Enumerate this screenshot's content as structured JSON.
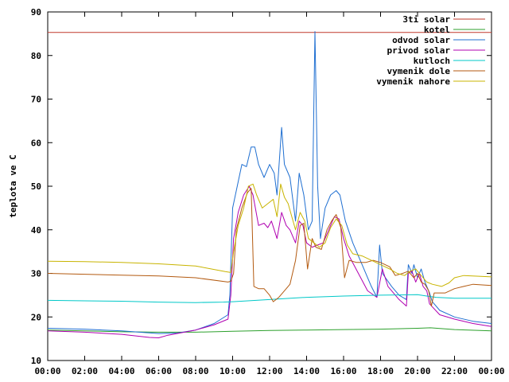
{
  "chart_data": {
    "type": "line",
    "title": "",
    "xlabel": "",
    "ylabel": "teplota ve C",
    "xlim": [
      0,
      24
    ],
    "ylim": [
      10,
      90
    ],
    "x_tick_labels": [
      "00:00",
      "02:00",
      "04:00",
      "06:00",
      "08:00",
      "10:00",
      "12:00",
      "14:00",
      "16:00",
      "18:00",
      "20:00",
      "22:00",
      "00:00"
    ],
    "y_tick_labels": [
      "10",
      "20",
      "30",
      "40",
      "50",
      "60",
      "70",
      "80",
      "90"
    ],
    "grid": false,
    "legend_position": "top-right",
    "series": [
      {
        "name": "3ti solar",
        "color": "#c0392b",
        "points": [
          [
            0,
            85.3
          ],
          [
            24,
            85.3
          ]
        ]
      },
      {
        "name": "kotel",
        "color": "#2ca02c",
        "points": [
          [
            0,
            17.0
          ],
          [
            2,
            16.8
          ],
          [
            4,
            16.6
          ],
          [
            6,
            16.5
          ],
          [
            8,
            16.5
          ],
          [
            10,
            16.7
          ],
          [
            12,
            16.9
          ],
          [
            14,
            17.0
          ],
          [
            16,
            17.1
          ],
          [
            18,
            17.2
          ],
          [
            20,
            17.4
          ],
          [
            20.7,
            17.5
          ],
          [
            22,
            17.1
          ],
          [
            24,
            16.8
          ]
        ]
      },
      {
        "name": "odvod solar",
        "color": "#1f6fd1",
        "points": [
          [
            0,
            17.4
          ],
          [
            2,
            17.2
          ],
          [
            4,
            16.8
          ],
          [
            6,
            16.2
          ],
          [
            7,
            16.3
          ],
          [
            8,
            17.0
          ],
          [
            9,
            18.5
          ],
          [
            9.75,
            20.5
          ],
          [
            9.85,
            25
          ],
          [
            10,
            45
          ],
          [
            10.25,
            50
          ],
          [
            10.5,
            55
          ],
          [
            10.75,
            54.5
          ],
          [
            11,
            59
          ],
          [
            11.2,
            59
          ],
          [
            11.4,
            55
          ],
          [
            11.7,
            52
          ],
          [
            12.0,
            55
          ],
          [
            12.25,
            53
          ],
          [
            12.4,
            48
          ],
          [
            12.65,
            63.5
          ],
          [
            12.8,
            55
          ],
          [
            13.1,
            52
          ],
          [
            13.4,
            42
          ],
          [
            13.6,
            53
          ],
          [
            13.85,
            48
          ],
          [
            14.1,
            40
          ],
          [
            14.3,
            42
          ],
          [
            14.45,
            85.5
          ],
          [
            14.6,
            50
          ],
          [
            14.75,
            38
          ],
          [
            15.0,
            45
          ],
          [
            15.3,
            48
          ],
          [
            15.6,
            49
          ],
          [
            15.8,
            48
          ],
          [
            16.1,
            42
          ],
          [
            16.5,
            37
          ],
          [
            17.0,
            32
          ],
          [
            17.5,
            27
          ],
          [
            17.8,
            24.5
          ],
          [
            17.95,
            36.5
          ],
          [
            18.1,
            30
          ],
          [
            18.6,
            27
          ],
          [
            19.0,
            25
          ],
          [
            19.4,
            24
          ],
          [
            19.5,
            32
          ],
          [
            19.7,
            30
          ],
          [
            19.8,
            32
          ],
          [
            20.0,
            29
          ],
          [
            20.2,
            31
          ],
          [
            20.4,
            28
          ],
          [
            20.65,
            25.5
          ],
          [
            20.8,
            23.5
          ],
          [
            21.2,
            21.5
          ],
          [
            22.0,
            20
          ],
          [
            23.0,
            19
          ],
          [
            24,
            18.5
          ]
        ]
      },
      {
        "name": "privod solar",
        "color": "#b000b0",
        "points": [
          [
            0,
            16.8
          ],
          [
            2,
            16.5
          ],
          [
            4,
            16.0
          ],
          [
            5.5,
            15.3
          ],
          [
            6,
            15.2
          ],
          [
            6.5,
            15.8
          ],
          [
            8,
            17.0
          ],
          [
            9,
            18.2
          ],
          [
            9.75,
            19.5
          ],
          [
            9.9,
            25
          ],
          [
            10.05,
            38
          ],
          [
            10.3,
            44
          ],
          [
            10.6,
            48
          ],
          [
            10.9,
            50
          ],
          [
            11.1,
            48
          ],
          [
            11.4,
            41
          ],
          [
            11.7,
            41.5
          ],
          [
            11.9,
            40.5
          ],
          [
            12.1,
            42
          ],
          [
            12.4,
            38
          ],
          [
            12.65,
            44
          ],
          [
            12.9,
            41
          ],
          [
            13.1,
            40
          ],
          [
            13.4,
            37
          ],
          [
            13.6,
            42
          ],
          [
            13.8,
            41
          ],
          [
            14.0,
            37
          ],
          [
            14.3,
            36
          ],
          [
            14.6,
            36.5
          ],
          [
            14.9,
            37
          ],
          [
            15.2,
            40
          ],
          [
            15.5,
            43
          ],
          [
            15.75,
            42.5
          ],
          [
            16.0,
            38
          ],
          [
            16.3,
            34
          ],
          [
            16.8,
            30
          ],
          [
            17.3,
            26
          ],
          [
            17.8,
            24.5
          ],
          [
            18.1,
            31
          ],
          [
            18.4,
            27
          ],
          [
            19.0,
            24
          ],
          [
            19.4,
            22.5
          ],
          [
            19.5,
            30
          ],
          [
            19.7,
            30.5
          ],
          [
            19.9,
            28
          ],
          [
            20.1,
            30
          ],
          [
            20.3,
            27
          ],
          [
            20.5,
            26
          ],
          [
            20.65,
            23
          ],
          [
            21.2,
            20.5
          ],
          [
            22.0,
            19.5
          ],
          [
            23.0,
            18.5
          ],
          [
            24,
            17.8
          ]
        ]
      },
      {
        "name": "kutloch",
        "color": "#00c8c8",
        "points": [
          [
            0,
            23.8
          ],
          [
            2,
            23.7
          ],
          [
            4,
            23.6
          ],
          [
            6,
            23.4
          ],
          [
            8,
            23.3
          ],
          [
            9.5,
            23.4
          ],
          [
            10,
            23.5
          ],
          [
            12,
            24.0
          ],
          [
            14,
            24.5
          ],
          [
            16,
            24.8
          ],
          [
            18,
            25.0
          ],
          [
            20,
            25.1
          ],
          [
            20.5,
            24.8
          ],
          [
            21,
            24.5
          ],
          [
            22,
            24.3
          ],
          [
            24,
            24.3
          ]
        ]
      },
      {
        "name": "vymenik dole",
        "color": "#b35a10",
        "points": [
          [
            0,
            30.0
          ],
          [
            2,
            29.8
          ],
          [
            4,
            29.6
          ],
          [
            6,
            29.4
          ],
          [
            8,
            29.0
          ],
          [
            9.75,
            28.0
          ],
          [
            9.9,
            28.2
          ],
          [
            10.05,
            30
          ],
          [
            10.2,
            40
          ],
          [
            10.5,
            45
          ],
          [
            10.8,
            48.5
          ],
          [
            11.0,
            49.5
          ],
          [
            11.15,
            27
          ],
          [
            11.4,
            26.5
          ],
          [
            11.7,
            26.5
          ],
          [
            12.0,
            25
          ],
          [
            12.2,
            23.5
          ],
          [
            12.5,
            24.5
          ],
          [
            12.8,
            26
          ],
          [
            13.1,
            27.5
          ],
          [
            13.4,
            33
          ],
          [
            13.65,
            41
          ],
          [
            13.85,
            41.5
          ],
          [
            14.05,
            31
          ],
          [
            14.3,
            38
          ],
          [
            14.5,
            36
          ],
          [
            14.8,
            35.5
          ],
          [
            15.1,
            40
          ],
          [
            15.35,
            42
          ],
          [
            15.6,
            43.5
          ],
          [
            15.85,
            40.5
          ],
          [
            16.05,
            29
          ],
          [
            16.3,
            33
          ],
          [
            16.7,
            32.5
          ],
          [
            17.2,
            32.5
          ],
          [
            17.6,
            33
          ],
          [
            18.0,
            32.5
          ],
          [
            18.5,
            31.5
          ],
          [
            18.8,
            29.5
          ],
          [
            19.2,
            30
          ],
          [
            19.5,
            30.5
          ],
          [
            19.8,
            29
          ],
          [
            20.0,
            30
          ],
          [
            20.2,
            28
          ],
          [
            20.4,
            27.5
          ],
          [
            20.6,
            26
          ],
          [
            20.75,
            22.5
          ],
          [
            20.9,
            25.5
          ],
          [
            21.5,
            25.5
          ],
          [
            22.0,
            26.5
          ],
          [
            22.5,
            27.0
          ],
          [
            23.0,
            27.5
          ],
          [
            24,
            27.2
          ]
        ]
      },
      {
        "name": "vymenik nahore",
        "color": "#c8b400",
        "points": [
          [
            0,
            32.8
          ],
          [
            2,
            32.7
          ],
          [
            4,
            32.5
          ],
          [
            6,
            32.2
          ],
          [
            8,
            31.7
          ],
          [
            9.6,
            30.4
          ],
          [
            9.9,
            30.2
          ],
          [
            10.05,
            35
          ],
          [
            10.3,
            41
          ],
          [
            10.6,
            45
          ],
          [
            10.85,
            50
          ],
          [
            11.1,
            50.5
          ],
          [
            11.3,
            48
          ],
          [
            11.6,
            45
          ],
          [
            11.9,
            46
          ],
          [
            12.2,
            47
          ],
          [
            12.4,
            43
          ],
          [
            12.6,
            50.5
          ],
          [
            12.8,
            47.5
          ],
          [
            13.0,
            46
          ],
          [
            13.2,
            43
          ],
          [
            13.4,
            40
          ],
          [
            13.65,
            44
          ],
          [
            13.9,
            42
          ],
          [
            14.1,
            38
          ],
          [
            14.4,
            37
          ],
          [
            14.7,
            36
          ],
          [
            15.0,
            37
          ],
          [
            15.3,
            40.5
          ],
          [
            15.6,
            42.5
          ],
          [
            15.9,
            41
          ],
          [
            16.2,
            36.5
          ],
          [
            16.5,
            34.5
          ],
          [
            17.0,
            34
          ],
          [
            17.5,
            33
          ],
          [
            18.0,
            32
          ],
          [
            18.5,
            31
          ],
          [
            18.9,
            30
          ],
          [
            19.3,
            29.5
          ],
          [
            19.6,
            30.5
          ],
          [
            19.9,
            31
          ],
          [
            20.2,
            29.5
          ],
          [
            20.5,
            28
          ],
          [
            20.8,
            27.5
          ],
          [
            21.3,
            27.0
          ],
          [
            21.7,
            27.8
          ],
          [
            22.0,
            29
          ],
          [
            22.5,
            29.5
          ],
          [
            24,
            29.2
          ]
        ]
      }
    ]
  }
}
